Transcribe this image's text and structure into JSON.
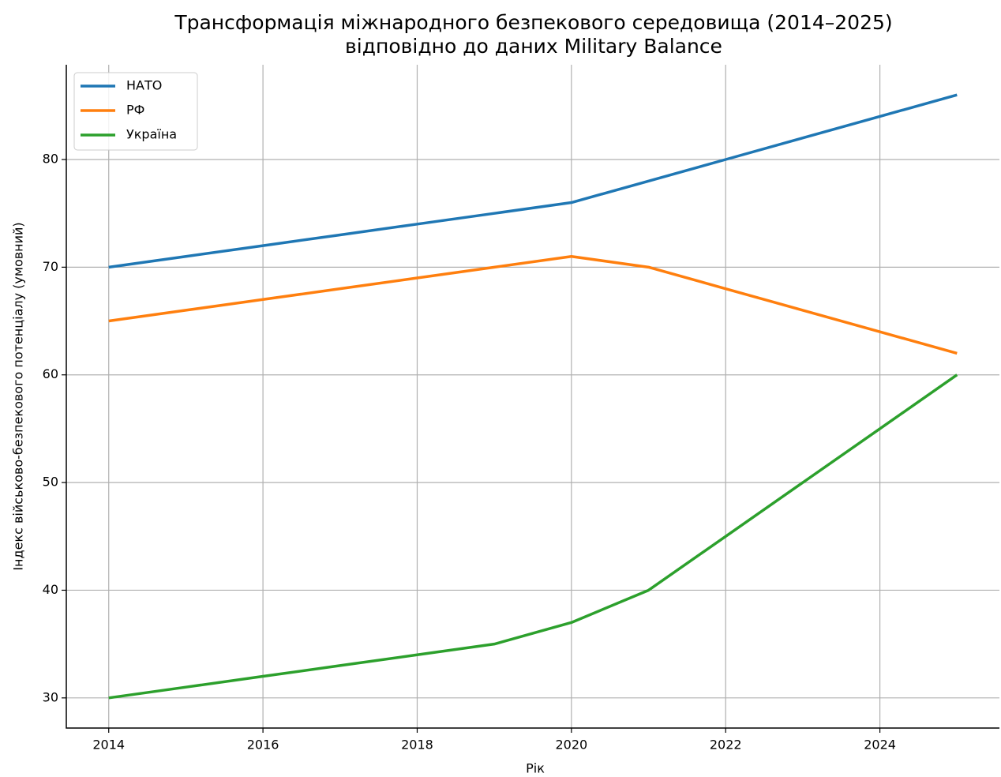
{
  "chart_data": {
    "type": "line",
    "title": "Трансформація міжнародного безпекового середовища (2014–2025)\nвідповідно до даних Military Balance",
    "x_label": "Рік",
    "y_label": "Індекс військово-безпекового потенціалу (умовний)",
    "x": [
      2014,
      2015,
      2016,
      2017,
      2018,
      2019,
      2020,
      2021,
      2022,
      2023,
      2024,
      2025
    ],
    "series": [
      {
        "name": "НАТО",
        "color": "#1f77b4",
        "values": [
          70,
          71,
          72,
          73,
          74,
          75,
          76,
          78,
          80,
          82,
          84,
          86
        ]
      },
      {
        "name": "РФ",
        "color": "#ff7f0e",
        "values": [
          65,
          66,
          67,
          68,
          69,
          70,
          71,
          70,
          68,
          66,
          64,
          62
        ]
      },
      {
        "name": "Україна",
        "color": "#2ca02c",
        "values": [
          30,
          31,
          32,
          33,
          34,
          35,
          37,
          40,
          45,
          50,
          55,
          60
        ]
      }
    ],
    "xlim": [
      2013.45,
      2025.55
    ],
    "xticks": [
      2014,
      2016,
      2018,
      2020,
      2022,
      2024
    ],
    "ylim": [
      27.2,
      88.8
    ],
    "yticks": [
      30,
      40,
      50,
      60,
      70,
      80
    ],
    "grid": true,
    "legend": "upper left"
  }
}
